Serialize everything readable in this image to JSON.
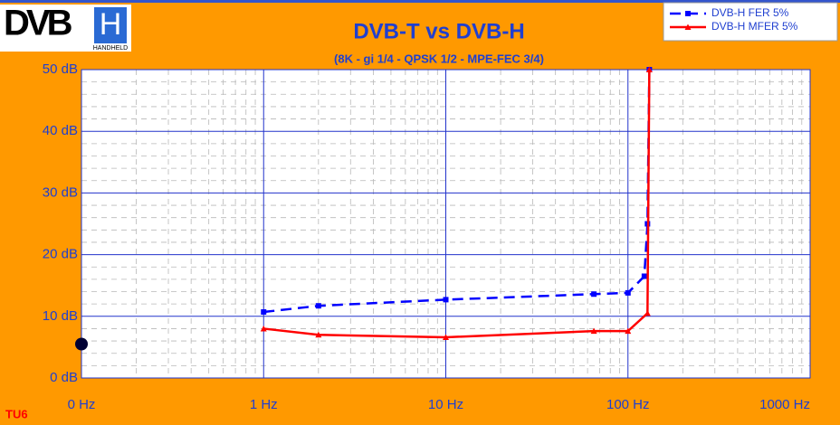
{
  "logo": {
    "main": "DVB",
    "letter": "H",
    "sub": "HANDHELD"
  },
  "badge": "TU6",
  "chart_data": {
    "type": "line",
    "title": "DVB-T vs DVB-H",
    "subtitle": "(8K - gi 1/4 - QPSK 1/2 - MPE-FEC 3/4)",
    "log_x": true,
    "grid": true,
    "legend": "top-right",
    "xlim": [
      0.1,
      1000
    ],
    "xticks": [
      {
        "value": 0.1,
        "label": "0 Hz"
      },
      {
        "value": 1,
        "label": "1 Hz"
      },
      {
        "value": 10,
        "label": "10 Hz"
      },
      {
        "value": 100,
        "label": "100 Hz"
      },
      {
        "value": 1000,
        "label": "1000 Hz"
      }
    ],
    "ylim": [
      0,
      50
    ],
    "yticks": [
      {
        "value": 0,
        "label": "0 dB"
      },
      {
        "value": 10,
        "label": "10 dB"
      },
      {
        "value": 20,
        "label": "20 dB"
      },
      {
        "value": 30,
        "label": "30 dB"
      },
      {
        "value": 40,
        "label": "40 dB"
      },
      {
        "value": 50,
        "label": "50 dB"
      }
    ],
    "series": [
      {
        "name": "DVB-H FER 5%",
        "color": "#0000ff",
        "dash": true,
        "marker": "square",
        "x": [
          1,
          2,
          10,
          65,
          100,
          123,
          128,
          131
        ],
        "values": [
          10.7,
          11.7,
          12.7,
          13.6,
          13.8,
          16.5,
          25,
          50
        ]
      },
      {
        "name": "DVB-H MFER 5%",
        "color": "#ff0000",
        "dash": false,
        "marker": "triangle",
        "x": [
          1,
          2,
          10,
          65,
          100,
          128,
          131
        ],
        "values": [
          8.0,
          7.0,
          6.6,
          7.6,
          7.6,
          10.5,
          50
        ]
      }
    ],
    "reference_point": {
      "x": 0.1,
      "y": 5.5,
      "color": "#000033"
    }
  }
}
